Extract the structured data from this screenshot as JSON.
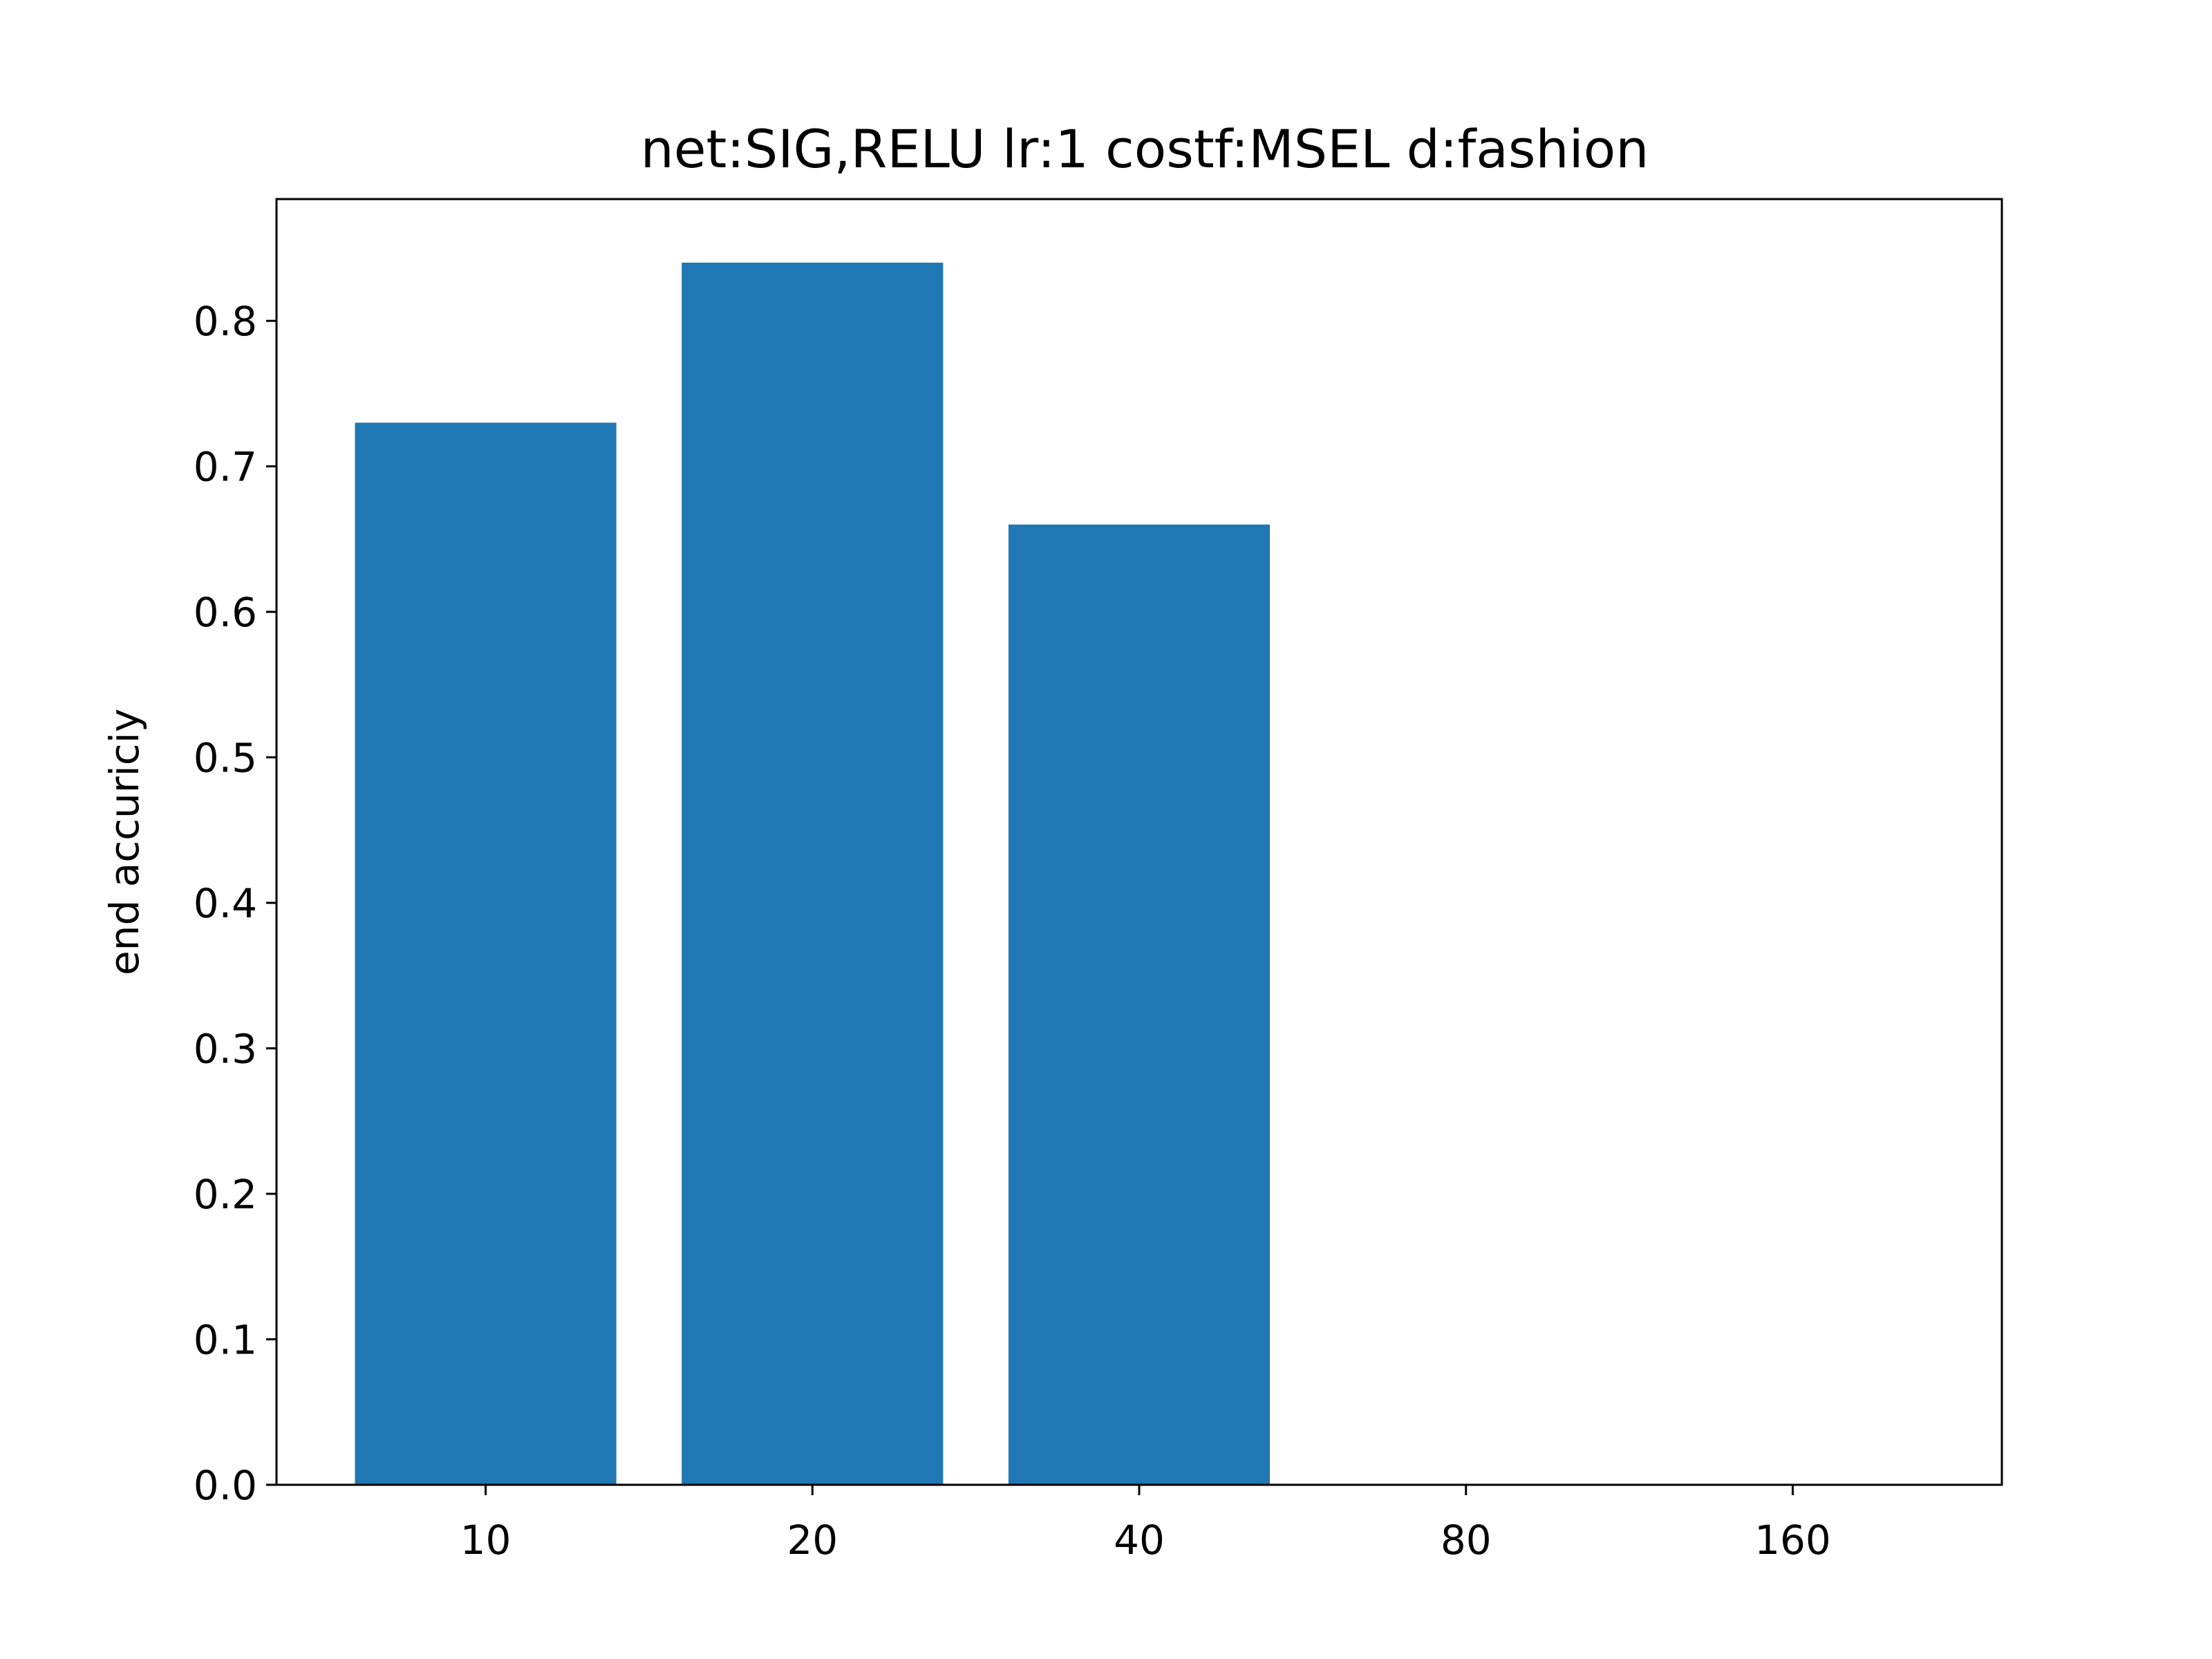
{
  "chart_data": {
    "type": "bar",
    "title": "net:SIG,RELU lr:1 costf:MSEL d:fashion",
    "xlabel": "",
    "ylabel": "end accuriciy",
    "categories": [
      "10",
      "20",
      "40",
      "80",
      "160"
    ],
    "values": [
      0.73,
      0.84,
      0.66,
      0,
      0
    ],
    "ylim": [
      0,
      0.8837
    ],
    "yticks": [
      "0.0",
      "0.1",
      "0.2",
      "0.3",
      "0.4",
      "0.5",
      "0.6",
      "0.7",
      "0.8"
    ],
    "bar_color": "#1f77b4",
    "grid": false,
    "legend": "none"
  }
}
